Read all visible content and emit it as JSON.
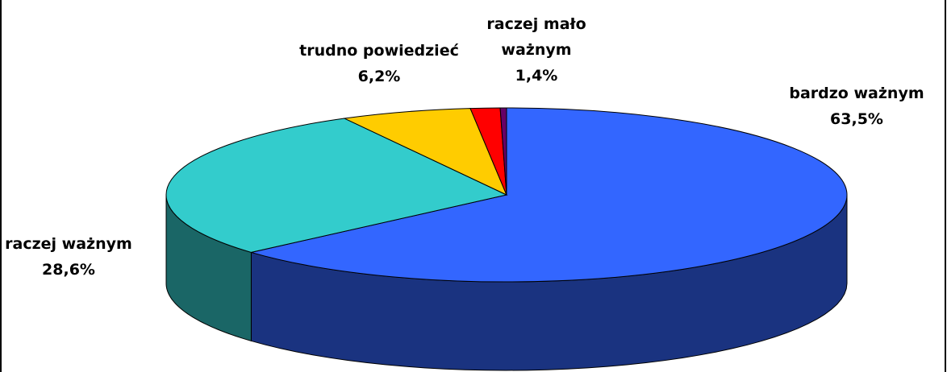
{
  "chart_data": {
    "type": "pie3d",
    "categories": [
      "bardzo ważnym",
      "raczej ważnym",
      "trudno powiedzieć",
      "raczej mało ważnym",
      null
    ],
    "values": [
      63.5,
      28.6,
      6.2,
      1.4,
      0.3
    ],
    "value_labels": [
      "63,5%",
      "28,6%",
      "6,2%",
      "1,4%",
      null
    ],
    "colors": [
      "#3366ff",
      "#33cccc",
      "#ffcc00",
      "#ff0000",
      "#660066"
    ]
  }
}
